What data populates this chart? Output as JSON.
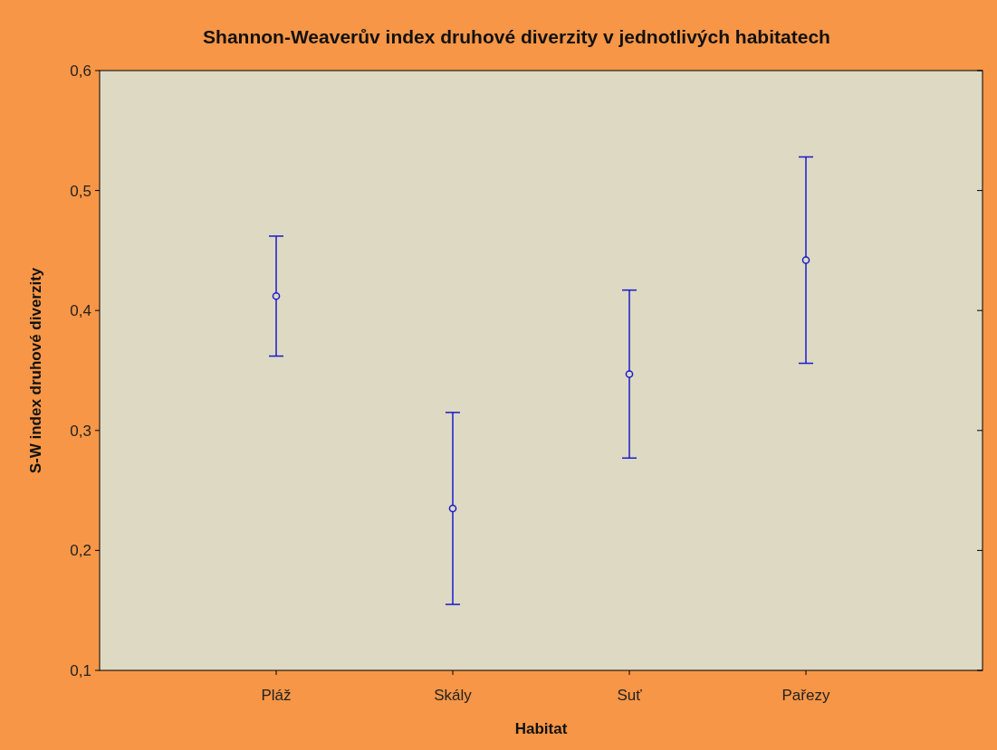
{
  "chart_data": {
    "type": "scatter",
    "title": "Shannon-Weaverův index druhové diverzity v jednotlivých habitatech",
    "xlabel": "Habitat",
    "ylabel": "S-W index druhové diverzity",
    "categories": [
      "Pláž",
      "Skály",
      "Suť",
      "Pařezy"
    ],
    "series": [
      {
        "color": "#1a1acc",
        "values": [
          0.412,
          0.235,
          0.347,
          0.442
        ],
        "errors": [
          0.05,
          0.08,
          0.07,
          0.086
        ]
      }
    ],
    "ylim": [
      0.1,
      0.6
    ],
    "yticks": [
      {
        "value": 0.1,
        "label": "0,1"
      },
      {
        "value": 0.2,
        "label": "0,2"
      },
      {
        "value": 0.3,
        "label": "0,3"
      },
      {
        "value": 0.4,
        "label": "0,4"
      },
      {
        "value": 0.5,
        "label": "0,5"
      },
      {
        "value": 0.6,
        "label": "0,6"
      }
    ],
    "marker": "circle",
    "grid": false
  }
}
